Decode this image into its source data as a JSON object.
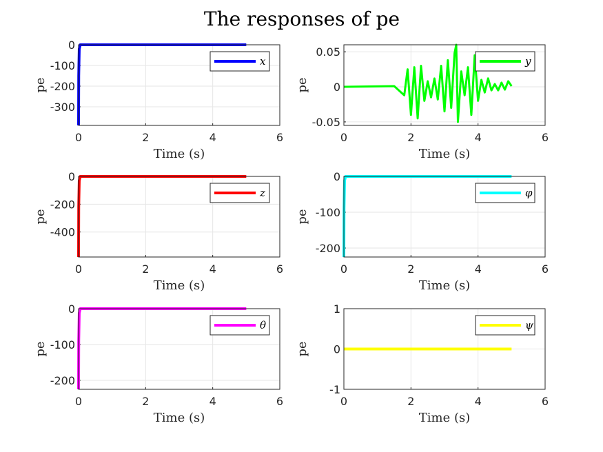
{
  "figure": {
    "title": "The responses of pe"
  },
  "chart_data": [
    {
      "type": "line",
      "xlabel": "Time (s)",
      "ylabel": "pe",
      "xlim": [
        0,
        6
      ],
      "ylim": [
        -390,
        0
      ],
      "xticks": [
        "0",
        "2",
        "4",
        "6"
      ],
      "yticks": [
        "0",
        "-100",
        "-200",
        "-300"
      ],
      "ytick_values": [
        0,
        -100,
        -200,
        -300
      ],
      "grid": true,
      "legend_position": "top-right",
      "series": [
        {
          "name": "x",
          "color": "#0000ff",
          "x": [
            0,
            0.005,
            0.02,
            0.05,
            5
          ],
          "y": [
            -390,
            -150,
            -20,
            0,
            0
          ]
        }
      ]
    },
    {
      "type": "line",
      "xlabel": "Time (s)",
      "ylabel": "pe",
      "xlim": [
        0,
        6
      ],
      "ylim": [
        -0.055,
        0.06
      ],
      "xticks": [
        "0",
        "2",
        "4",
        "6"
      ],
      "yticks": [
        "0.05",
        "0",
        "-0.05"
      ],
      "ytick_values": [
        0.05,
        0,
        -0.05
      ],
      "grid": true,
      "legend_position": "top-right",
      "series": [
        {
          "name": "y",
          "color": "#00ff00",
          "x": [
            0,
            1.5,
            1.8,
            1.9,
            2.0,
            2.1,
            2.2,
            2.3,
            2.4,
            2.5,
            2.6,
            2.7,
            2.8,
            2.9,
            3.0,
            3.1,
            3.2,
            3.3,
            3.35,
            3.4,
            3.5,
            3.6,
            3.7,
            3.8,
            3.9,
            4.0,
            4.1,
            4.2,
            4.3,
            4.4,
            4.5,
            4.6,
            4.7,
            4.8,
            4.9,
            5.0
          ],
          "y": [
            0,
            0.001,
            -0.012,
            0.025,
            -0.04,
            0.028,
            -0.045,
            0.03,
            -0.02,
            0.008,
            -0.015,
            0.012,
            -0.018,
            0.03,
            -0.035,
            0.038,
            -0.03,
            0.048,
            0.06,
            -0.05,
            0.022,
            -0.012,
            0.028,
            -0.04,
            0.045,
            -0.02,
            0.01,
            -0.008,
            0.012,
            -0.005,
            0.004,
            -0.005,
            0.006,
            -0.004,
            0.008,
            0.001
          ]
        }
      ]
    },
    {
      "type": "line",
      "xlabel": "Time (s)",
      "ylabel": "pe",
      "xlim": [
        0,
        6
      ],
      "ylim": [
        -580,
        0
      ],
      "xticks": [
        "0",
        "2",
        "4",
        "6"
      ],
      "yticks": [
        "0",
        "-200",
        "-400"
      ],
      "ytick_values": [
        0,
        -200,
        -400
      ],
      "grid": true,
      "legend_position": "top-right",
      "series": [
        {
          "name": "z",
          "color": "#ff0000",
          "x": [
            0,
            0.005,
            0.02,
            0.05,
            5
          ],
          "y": [
            -580,
            -220,
            -30,
            0,
            0
          ]
        }
      ]
    },
    {
      "type": "line",
      "xlabel": "Time (s)",
      "ylabel": "pe",
      "xlim": [
        0,
        6
      ],
      "ylim": [
        -225,
        0
      ],
      "xticks": [
        "0",
        "2",
        "4",
        "6"
      ],
      "yticks": [
        "0",
        "-100",
        "-200"
      ],
      "ytick_values": [
        0,
        -100,
        -200
      ],
      "grid": true,
      "legend_position": "top-right",
      "series": [
        {
          "name": "φ",
          "color": "#00ffff",
          "x": [
            0,
            0.005,
            0.02,
            0.05,
            5
          ],
          "y": [
            -225,
            -90,
            -12,
            0,
            0
          ]
        }
      ]
    },
    {
      "type": "line",
      "xlabel": "Time (s)",
      "ylabel": "pe",
      "xlim": [
        0,
        6
      ],
      "ylim": [
        -225,
        0
      ],
      "xticks": [
        "0",
        "2",
        "4",
        "6"
      ],
      "yticks": [
        "0",
        "-100",
        "-200"
      ],
      "ytick_values": [
        0,
        -100,
        -200
      ],
      "grid": true,
      "legend_position": "top-right",
      "series": [
        {
          "name": "θ",
          "color": "#ff00ff",
          "x": [
            0,
            0.005,
            0.02,
            0.05,
            5
          ],
          "y": [
            -225,
            -90,
            -12,
            0,
            0
          ]
        }
      ]
    },
    {
      "type": "line",
      "xlabel": "Time (s)",
      "ylabel": "pe",
      "xlim": [
        0,
        6
      ],
      "ylim": [
        -1,
        1
      ],
      "xticks": [
        "0",
        "2",
        "4",
        "6"
      ],
      "yticks": [
        "1",
        "0",
        "-1"
      ],
      "ytick_values": [
        1,
        0,
        -1
      ],
      "grid": true,
      "legend_position": "top-right",
      "series": [
        {
          "name": "ψ",
          "color": "#ffff00",
          "x": [
            0,
            5
          ],
          "y": [
            0,
            0
          ]
        }
      ]
    }
  ]
}
